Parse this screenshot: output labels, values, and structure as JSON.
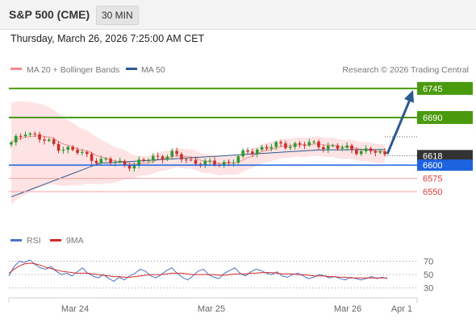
{
  "header": {
    "title": "S&P 500 (CME)",
    "interval": "30 MIN"
  },
  "datetime": "Thursday, March 26, 2026 7:25:00 AM CET",
  "legend": {
    "bollinger_label": "MA 20 + Bollinger Bands",
    "ma50_label": "MA 50",
    "credit": "Research © 2026 Trading Central",
    "rsi_label": "RSI",
    "rsi_ma_label": "9MA"
  },
  "colors": {
    "bollinger": "#f28b8b",
    "ma50": "#2d5a8e",
    "green_level": "#4a9a0e",
    "blue_level": "#1d63e0",
    "red_level": "#e03a3a",
    "current_price": "#333333",
    "arrow": "#2d5a8e",
    "rsi": "#4a72c4",
    "rsi_ma": "#d42a2a"
  },
  "chart_data": [
    {
      "type": "candlestick",
      "title": "S&P 500 (CME) 30 MIN",
      "x_ticks": [
        "Mar 24",
        "Mar 25",
        "Mar 26",
        "Apr 1"
      ],
      "ylim": [
        6480,
        6760
      ],
      "levels": [
        {
          "value": 6745,
          "label": "6745",
          "kind": "resistance",
          "color": "#4a9a0e"
        },
        {
          "value": 6690,
          "label": "6690",
          "kind": "resistance",
          "color": "#4a9a0e"
        },
        {
          "value": 6618,
          "label": "6618",
          "kind": "current",
          "color": "#333333"
        },
        {
          "value": 6600,
          "label": "6600",
          "kind": "pivot",
          "color": "#1d63e0"
        },
        {
          "value": 6575,
          "label": "6575",
          "kind": "support",
          "color": "#e03a3a"
        },
        {
          "value": 6550,
          "label": "6550",
          "kind": "support",
          "color": "#e03a3a"
        }
      ],
      "projection": {
        "from": 6618,
        "to": 6745,
        "direction": "up"
      },
      "series": [
        {
          "name": "MA 20 + Bollinger Bands",
          "role": "bollinger"
        },
        {
          "name": "MA 50",
          "role": "ma"
        }
      ]
    },
    {
      "type": "line",
      "title": "RSI",
      "y_ticks": [
        70,
        50,
        30
      ],
      "ylim": [
        20,
        85
      ],
      "series": [
        {
          "name": "RSI",
          "values": [
            48,
            62,
            70,
            68,
            72,
            65,
            60,
            58,
            62,
            55,
            50,
            52,
            48,
            54,
            60,
            52,
            48,
            45,
            50,
            44,
            40,
            46,
            42,
            48,
            52,
            58,
            55,
            48,
            45,
            50,
            56,
            60,
            52,
            46,
            42,
            48,
            55,
            58,
            50,
            46,
            44,
            52,
            56,
            60,
            52,
            48,
            54,
            58,
            56,
            52,
            50,
            54,
            48,
            46,
            50,
            52,
            48,
            44,
            46,
            50,
            48,
            45,
            47,
            44,
            42,
            46,
            44,
            42,
            44,
            47,
            44,
            46,
            44
          ]
        },
        {
          "name": "9MA",
          "values": [
            52,
            58,
            63,
            66,
            67,
            66,
            64,
            61,
            59,
            57,
            55,
            54,
            53,
            52,
            52,
            52,
            51,
            50,
            49,
            48,
            47,
            47,
            46,
            46,
            47,
            48,
            49,
            50,
            50,
            50,
            51,
            52,
            52,
            52,
            51,
            50,
            50,
            50,
            50,
            50,
            49,
            49,
            50,
            51,
            51,
            51,
            52,
            52,
            53,
            53,
            53,
            52,
            51,
            51,
            51,
            50,
            50,
            49,
            48,
            48,
            48,
            47,
            47,
            46,
            46,
            45,
            45,
            45,
            45,
            45,
            45,
            45,
            45
          ]
        }
      ]
    }
  ]
}
